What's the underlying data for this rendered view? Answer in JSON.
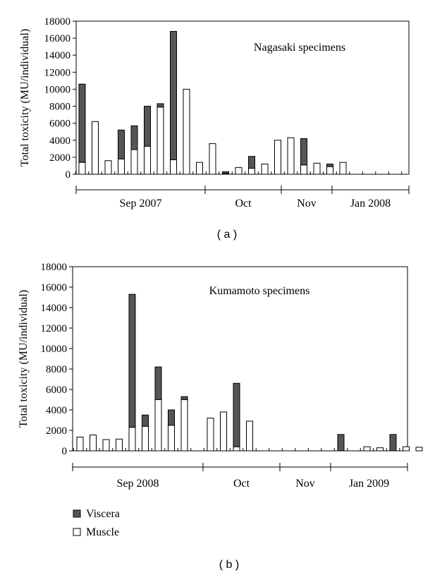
{
  "legend": [
    {
      "key": "viscera",
      "label": "Viscera",
      "color": "#555555"
    },
    {
      "key": "muscle",
      "label": "Muscle",
      "color": "#ffffff"
    }
  ],
  "chart_data": [
    {
      "type": "bar",
      "stacked": true,
      "panel_label": "( a )",
      "title": "Nagasaki specimens",
      "ylabel": "Total toxicity (MU/individual)",
      "ylim": [
        0,
        18000
      ],
      "yticks": [
        0,
        2000,
        4000,
        6000,
        8000,
        10000,
        12000,
        14000,
        16000,
        18000
      ],
      "months": [
        "Sep 2007",
        "Oct",
        "Nov",
        "Jan 2008"
      ],
      "series": [
        {
          "name": "Muscle",
          "values": [
            1400,
            6200,
            1600,
            1800,
            2900,
            3300,
            7900,
            1700,
            10000,
            1400,
            3600,
            100,
            800,
            700,
            1200,
            4000,
            4300,
            1100,
            1300,
            900,
            1400,
            0,
            0,
            0,
            0
          ]
        },
        {
          "name": "Viscera",
          "values": [
            9200,
            0,
            0,
            3400,
            2800,
            4700,
            400,
            15100,
            0,
            0,
            0,
            200,
            0,
            1400,
            0,
            0,
            0,
            3100,
            0,
            300,
            0,
            0,
            0,
            0,
            0
          ]
        }
      ]
    },
    {
      "type": "bar",
      "stacked": true,
      "panel_label": "( b )",
      "title": "Kumamoto specimens",
      "ylabel": "Total toxicity (MU/individual)",
      "ylim": [
        0,
        18000
      ],
      "yticks": [
        0,
        2000,
        4000,
        6000,
        8000,
        10000,
        12000,
        14000,
        16000,
        18000
      ],
      "months": [
        "Sep 2008",
        "Oct",
        "Nov",
        "Jan 2009"
      ],
      "series": [
        {
          "name": "Muscle",
          "values": [
            1350,
            1550,
            1100,
            1150,
            2300,
            2400,
            5000,
            2500,
            5000,
            0,
            3200,
            3800,
            400,
            2900,
            0,
            0,
            0,
            0,
            0,
            0,
            0,
            0,
            400,
            300,
            0,
            400,
            350
          ]
        },
        {
          "name": "Viscera",
          "values": [
            0,
            0,
            0,
            0,
            13000,
            1100,
            3200,
            1500,
            300,
            0,
            0,
            0,
            6200,
            0,
            0,
            0,
            0,
            0,
            0,
            0,
            1600,
            0,
            0,
            0,
            1600,
            0,
            0
          ]
        }
      ]
    }
  ]
}
